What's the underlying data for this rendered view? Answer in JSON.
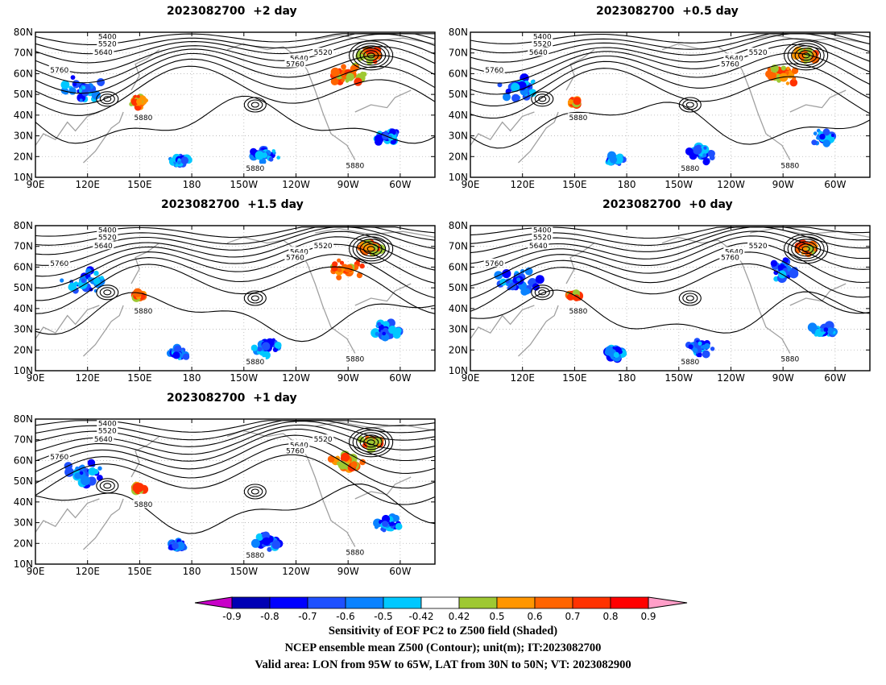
{
  "panels": [
    {
      "id": "p2",
      "title": "2023082700  +2 day"
    },
    {
      "id": "p05",
      "title": "2023082700  +0.5 day"
    },
    {
      "id": "p15",
      "title": "2023082700  +1.5 day"
    },
    {
      "id": "p0",
      "title": "2023082700  +0 day"
    },
    {
      "id": "p1",
      "title": "2023082700  +1 day"
    }
  ],
  "lat_labels": [
    "80N",
    "70N",
    "60N",
    "50N",
    "40N",
    "30N",
    "20N",
    "10N"
  ],
  "lon_labels": [
    "90E",
    "120E",
    "150E",
    "180",
    "150W",
    "120W",
    "90W",
    "60W"
  ],
  "contour_labels": [
    "5400",
    "5520",
    "5640",
    "5760",
    "5880"
  ],
  "colorbar": {
    "ticks": [
      "-0.9",
      "-0.8",
      "-0.7",
      "-0.6",
      "-0.5",
      "-0.42",
      "0.42",
      "0.5",
      "0.6",
      "0.7",
      "0.8",
      "0.9"
    ],
    "colors": [
      "#c800c8",
      "#0000b4",
      "#0000ff",
      "#1e50ff",
      "#0a82ff",
      "#00c8ff",
      "#ffffff",
      "#9ec832",
      "#ff9600",
      "#ff6400",
      "#ff3200",
      "#ff0000",
      "#ff9ec8"
    ]
  },
  "footer": {
    "line1": "Sensitivity of EOF PC2 to Z500 field (Shaded)",
    "line2": "NCEP ensemble mean Z500 (Contour); unit(m); IT:2023082700",
    "line3": "Valid area: LON from 95W to 65W, LAT from 30N to 50N; VT: 2023082900"
  }
}
